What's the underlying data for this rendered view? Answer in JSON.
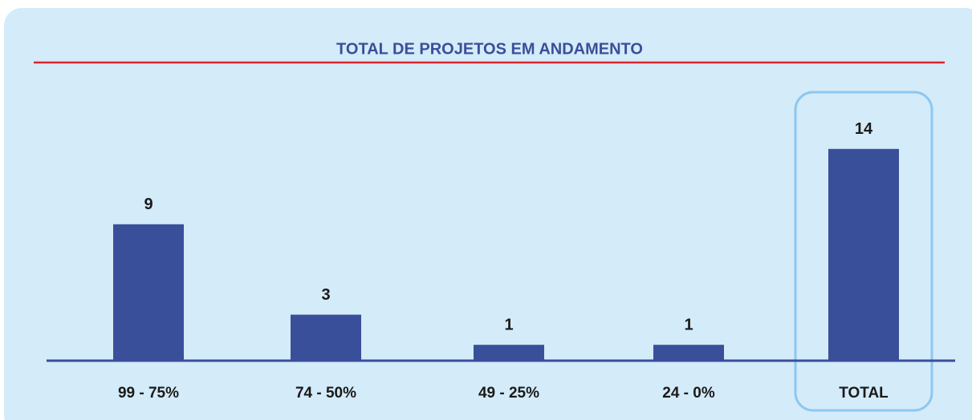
{
  "chart_data": {
    "type": "bar",
    "title": "TOTAL DE PROJETOS EM ANDAMENTO",
    "categories": [
      "99 - 75%",
      "74 - 50%",
      "49 - 25%",
      "24 - 0%",
      "TOTAL"
    ],
    "values": [
      9,
      3,
      1,
      1,
      14
    ],
    "color": "#3a4f9a"
  }
}
